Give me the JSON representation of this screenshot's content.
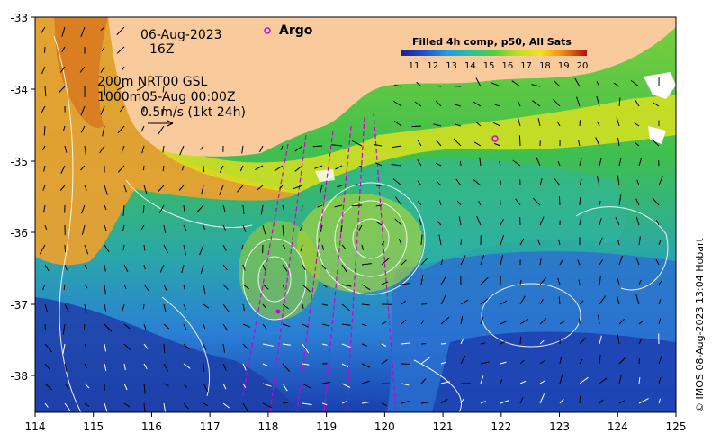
{
  "map": {
    "date": "06-Aug-2023",
    "hour": "16Z",
    "depth_line": "200m  NRT00 GSL",
    "depth2_line": "1000m05-Aug 00:00Z",
    "vector_scale": "0.5m/s (1kt 24h)",
    "argo_label": "Argo",
    "colorbar_title": "Filled 4h comp, p50, All Sats",
    "colorbar_ticks": [
      "11",
      "12",
      "13",
      "14",
      "15",
      "16",
      "17",
      "18",
      "19",
      "20"
    ],
    "credit": "© IMOS 08-Aug-2023 13:04 Hobart",
    "x_ticks": [
      "114",
      "115",
      "116",
      "117",
      "118",
      "119",
      "120",
      "121",
      "122",
      "123",
      "124",
      "125"
    ],
    "y_ticks": [
      "-33",
      "-34",
      "-35",
      "-36",
      "-37",
      "-38"
    ],
    "colors": {
      "land": "#f9cb9c",
      "argo": "#d000d0",
      "contour": "#ffffff",
      "vector": "#000000"
    }
  }
}
